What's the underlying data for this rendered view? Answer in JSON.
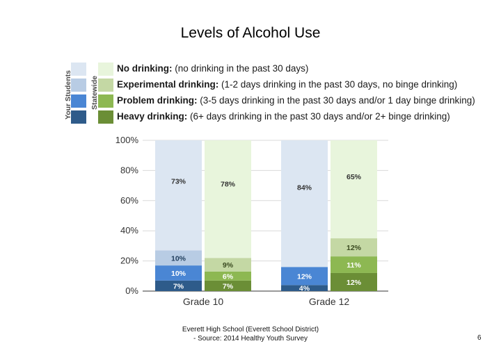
{
  "title": "Levels of Alcohol Use",
  "legend": {
    "your_students_label": "Your Students",
    "statewide_label": "Statewide",
    "items": [
      {
        "bold": "No drinking:",
        "text": " (no drinking in the past 30 days)",
        "your_color": "#dce6f2",
        "state_color": "#e8f5dc"
      },
      {
        "bold": "Experimental drinking:",
        "text": " (1-2 days drinking in the past 30 days, no binge drinking)",
        "your_color": "#b8cce4",
        "state_color": "#c4d8a4"
      },
      {
        "bold": "Problem drinking:",
        "text": " (3-5 days drinking in the past 30 days and/or 1 day binge drinking)",
        "your_color": "#4a86d4",
        "state_color": "#8db852"
      },
      {
        "bold": "Heavy drinking:",
        "text": " (6+ days drinking in the past 30 days and/or 2+ binge drinking)",
        "your_color": "#2e5b8a",
        "state_color": "#6b8e36"
      }
    ]
  },
  "chart_data": {
    "type": "bar",
    "stacked": true,
    "ylim": [
      0,
      100
    ],
    "yticks": [
      "0%",
      "20%",
      "40%",
      "60%",
      "80%",
      "100%"
    ],
    "categories": [
      "Grade 10",
      "Grade 12"
    ],
    "bar_groups": [
      "Your Students",
      "Statewide"
    ],
    "bars": [
      {
        "category": "Grade 10",
        "group": "Your Students",
        "segments": [
          {
            "level": "Heavy drinking",
            "value": 7,
            "label": "7%",
            "color": "#2e5b8a"
          },
          {
            "level": "Problem drinking",
            "value": 10,
            "label": "10%",
            "color": "#4a86d4"
          },
          {
            "level": "Experimental drinking",
            "value": 10,
            "label": "10%",
            "color": "#b8cce4"
          },
          {
            "level": "No drinking",
            "value": 73,
            "label": "73%",
            "color": "#dce6f2"
          }
        ]
      },
      {
        "category": "Grade 10",
        "group": "Statewide",
        "segments": [
          {
            "level": "Heavy drinking",
            "value": 7,
            "label": "7%",
            "color": "#6b8e36"
          },
          {
            "level": "Problem drinking",
            "value": 6,
            "label": "6%",
            "color": "#8db852"
          },
          {
            "level": "Experimental drinking",
            "value": 9,
            "label": "9%",
            "color": "#c4d8a4"
          },
          {
            "level": "No drinking",
            "value": 78,
            "label": "78%",
            "color": "#e8f5dc"
          }
        ]
      },
      {
        "category": "Grade 12",
        "group": "Your Students",
        "segments": [
          {
            "level": "Heavy drinking",
            "value": 4,
            "label": "4%",
            "color": "#2e5b8a"
          },
          {
            "level": "Problem drinking",
            "value": 12,
            "label": "12%",
            "color": "#4a86d4"
          },
          {
            "level": "Experimental drinking",
            "value": 0,
            "label": "",
            "color": "#b8cce4"
          },
          {
            "level": "No drinking",
            "value": 84,
            "label": "84%",
            "color": "#dce6f2"
          }
        ]
      },
      {
        "category": "Grade 12",
        "group": "Statewide",
        "segments": [
          {
            "level": "Heavy drinking",
            "value": 12,
            "label": "12%",
            "color": "#6b8e36"
          },
          {
            "level": "Problem drinking",
            "value": 11,
            "label": "11%",
            "color": "#8db852"
          },
          {
            "level": "Experimental drinking",
            "value": 12,
            "label": "12%",
            "color": "#c4d8a4"
          },
          {
            "level": "No drinking",
            "value": 65,
            "label": "65%",
            "color": "#e8f5dc"
          }
        ]
      }
    ]
  },
  "footer": {
    "line1": "Everett High School (Everett School District)",
    "line2": "- Source: 2014 Healthy Youth Survey"
  },
  "page_number": "6"
}
